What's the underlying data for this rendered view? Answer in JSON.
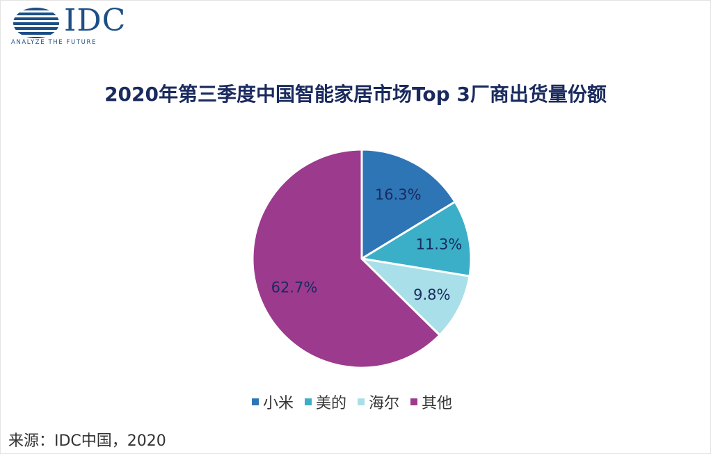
{
  "logo": {
    "text": "IDC",
    "tagline": "ANALYZE THE FUTURE"
  },
  "source": "来源：IDC中国，2020",
  "colors": {
    "xiaomi": "#2e75b6",
    "midea": "#3bafc7",
    "haier": "#a9dfe9",
    "others": "#9c3a8e",
    "title": "#1a2a5e",
    "logo": "#1c4f86"
  },
  "chart_data": {
    "type": "pie",
    "title": "2020年第三季度中国智能家居市场Top 3厂商出货量份额",
    "categories": [
      "小米",
      "美的",
      "海尔",
      "其他"
    ],
    "values": [
      16.3,
      11.3,
      9.8,
      62.7
    ],
    "data_labels": [
      "16.3%",
      "11.3%",
      "9.8%",
      "62.7%"
    ],
    "colors": [
      "#2e75b6",
      "#3bafc7",
      "#a9dfe9",
      "#9c3a8e"
    ],
    "label_colors": [
      "#1a2a5e",
      "#1a2a5e",
      "#1a2a5e",
      "#1a2a5e"
    ],
    "legend_position": "bottom",
    "start_angle": "12 o'clock",
    "direction": "clockwise"
  }
}
